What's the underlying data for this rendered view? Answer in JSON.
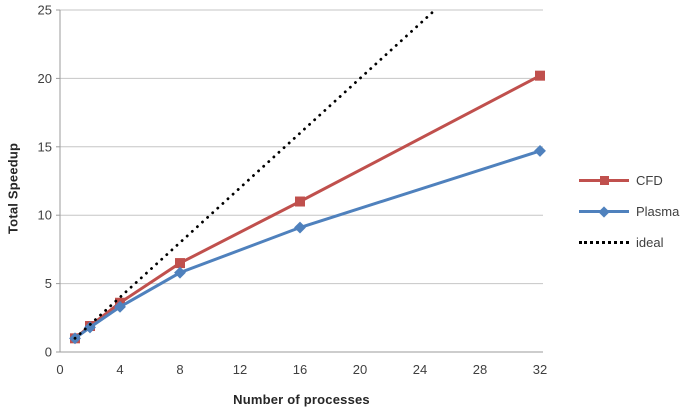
{
  "chart_data": {
    "type": "line",
    "title": "",
    "xlabel": "Number of processes",
    "ylabel": "Total Speedup",
    "xlim": [
      0,
      32
    ],
    "ylim": [
      0,
      25
    ],
    "x_ticks": [
      0,
      4,
      8,
      12,
      16,
      20,
      24,
      28,
      32
    ],
    "y_ticks": [
      0,
      5,
      10,
      15,
      20,
      25
    ],
    "grid": "horizontal-only",
    "legend_position": "right",
    "background_color": "#ffffff",
    "gridline_color": "#c6c6c6",
    "axis_line_color": "#9b9b9b",
    "tick_label_color": "#3f3f3f",
    "series": [
      {
        "name": "CFD",
        "color": "#c0504d",
        "marker": "square",
        "line_style": "solid",
        "x": [
          1,
          2,
          4,
          8,
          16,
          32
        ],
        "y": [
          1,
          1.9,
          3.6,
          6.5,
          11,
          20.2
        ]
      },
      {
        "name": "Plasma",
        "color": "#4f81bd",
        "marker": "diamond",
        "line_style": "solid",
        "x": [
          1,
          2,
          4,
          8,
          16,
          32
        ],
        "y": [
          1,
          1.8,
          3.3,
          5.8,
          9.1,
          14.7
        ]
      },
      {
        "name": "ideal",
        "color": "#000000",
        "marker": "none",
        "line_style": "dotted",
        "x": [
          1,
          25
        ],
        "y": [
          1,
          25
        ]
      }
    ]
  }
}
